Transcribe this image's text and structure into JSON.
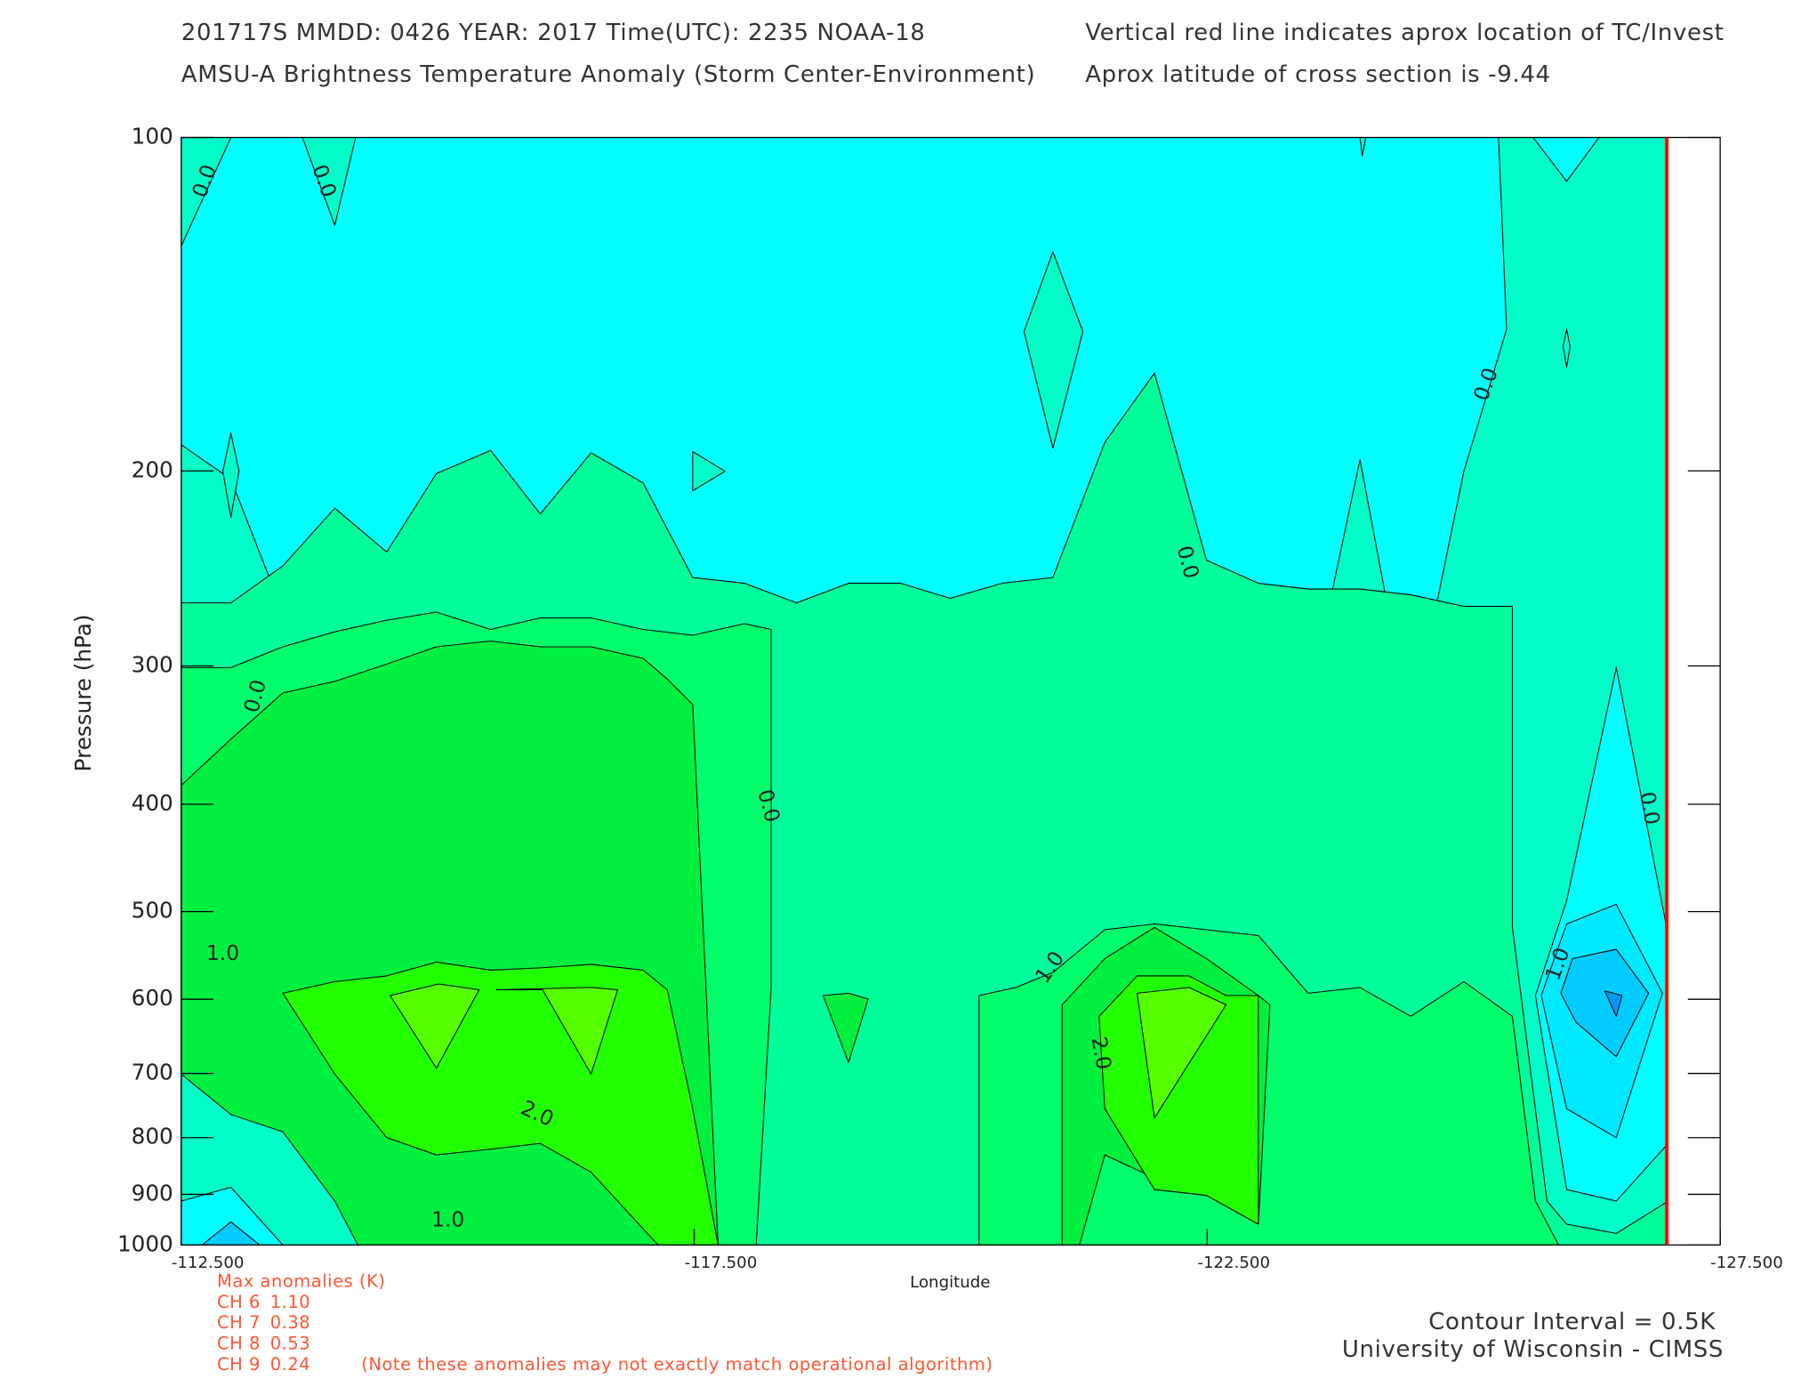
{
  "chart_data": {
    "type": "contour",
    "title": "201717S  MMDD: 0426 YEAR: 2017 Time(UTC): 2235 NOAA-18",
    "subtitle": "AMSU-A Brightness Temperature Anomaly (Storm Center-Environment)",
    "note_top": "Vertical red line indicates aprox location of TC/Invest",
    "note_latitude": "Aprox latitude of cross section is -9.44",
    "x_label": "Longitude",
    "y_label": "Pressure (hPa)",
    "xlim": [
      -112.5,
      -127.5
    ],
    "ylim": [
      1000,
      100
    ],
    "log_y": true,
    "xticks": [
      {
        "value": -112.5,
        "label": "-112.500"
      },
      {
        "value": -117.5,
        "label": "-117.500"
      },
      {
        "value": -122.5,
        "label": "-122.500"
      },
      {
        "value": -127.5,
        "label": "-127.500"
      }
    ],
    "yticks": [
      100,
      200,
      300,
      400,
      500,
      600,
      700,
      800,
      900,
      1000
    ],
    "tc_longitude": -126.98,
    "tc_line_color": "#ff0000",
    "contour_labels": [
      {
        "value": 0,
        "label": "0.0"
      },
      {
        "value": 0,
        "label": "0.0"
      },
      {
        "value": 0,
        "label": "0.0"
      },
      {
        "value": 0,
        "label": "0.0"
      },
      {
        "value": 0,
        "label": "0.0"
      },
      {
        "value": 0,
        "label": "0.0"
      },
      {
        "value": 0,
        "label": "0.0"
      },
      {
        "value": 1,
        "label": "1.0"
      },
      {
        "value": 1,
        "label": "1.0"
      },
      {
        "value": 1,
        "label": "1.0"
      },
      {
        "value": 1,
        "label": "1.0"
      },
      {
        "value": 2,
        "label": "2.0"
      },
      {
        "value": 2,
        "label": "2.0"
      }
    ],
    "anomalies_title": "Max anomalies (K)",
    "anomalies": [
      {
        "channel": "CH 6",
        "value": "1.10"
      },
      {
        "channel": "CH 7",
        "value": "0.38"
      },
      {
        "channel": "CH 8",
        "value": "0.53"
      },
      {
        "channel": "CH 9",
        "value": "0.24"
      }
    ],
    "anomalies_note": "(Note these anomalies may not exactly match operational algorithm)",
    "contour_interval": "Contour Interval = 0.5K",
    "credit": "University of Wisconsin - CIMSS"
  }
}
